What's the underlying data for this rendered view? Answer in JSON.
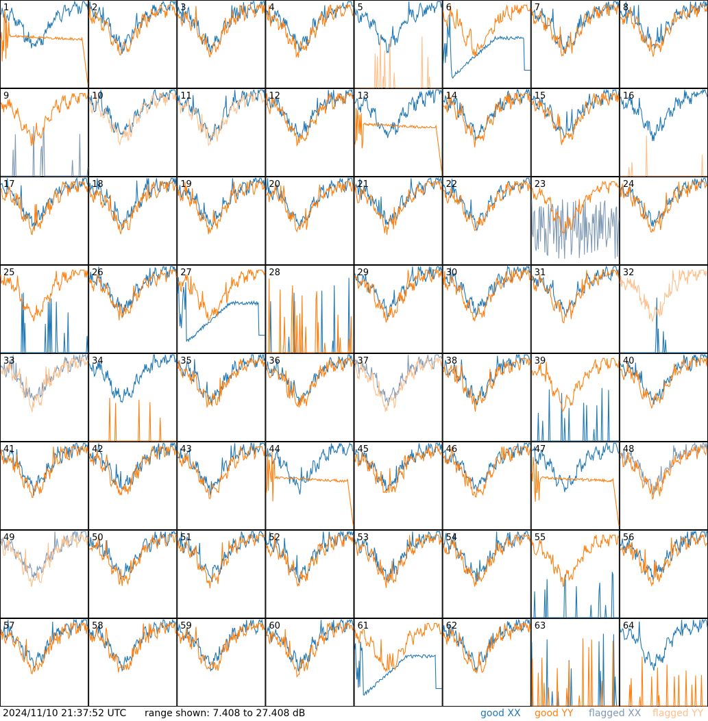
{
  "chart_data": {
    "type": "line",
    "grid": {
      "rows": 8,
      "cols": 8
    },
    "panels": [
      {
        "label": "1",
        "xx": "good",
        "yy": "good",
        "p": "tilt"
      },
      {
        "label": "2",
        "xx": "good",
        "yy": "good",
        "p": "normal"
      },
      {
        "label": "3",
        "xx": "good",
        "yy": "good",
        "p": "normal"
      },
      {
        "label": "4",
        "xx": "good",
        "yy": "good",
        "p": "normal"
      },
      {
        "label": "5",
        "xx": "good",
        "yy": "flagged",
        "p": "spikes_yy"
      },
      {
        "label": "6",
        "xx": "good",
        "yy": "good",
        "p": "dip"
      },
      {
        "label": "7",
        "xx": "good",
        "yy": "good",
        "p": "normal"
      },
      {
        "label": "8",
        "xx": "good",
        "yy": "good",
        "p": "normal"
      },
      {
        "label": "9",
        "xx": "flagged",
        "yy": "good",
        "p": "spikes_xx"
      },
      {
        "label": "10",
        "xx": "good",
        "yy": "flagged",
        "p": "normal"
      },
      {
        "label": "11",
        "xx": "good",
        "yy": "flagged",
        "p": "normal"
      },
      {
        "label": "12",
        "xx": "good",
        "yy": "good",
        "p": "normal"
      },
      {
        "label": "13",
        "xx": "good",
        "yy": "good",
        "p": "tilt"
      },
      {
        "label": "14",
        "xx": "good",
        "yy": "good",
        "p": "normal"
      },
      {
        "label": "15",
        "xx": "good",
        "yy": "good",
        "p": "normal"
      },
      {
        "label": "16",
        "xx": "good",
        "yy": "flagged",
        "p": "spikes_yy"
      },
      {
        "label": "17",
        "xx": "good",
        "yy": "good",
        "p": "normal"
      },
      {
        "label": "18",
        "xx": "good",
        "yy": "good",
        "p": "normal"
      },
      {
        "label": "19",
        "xx": "good",
        "yy": "good",
        "p": "normal"
      },
      {
        "label": "20",
        "xx": "good",
        "yy": "good",
        "p": "normal"
      },
      {
        "label": "21",
        "xx": "good",
        "yy": "good",
        "p": "normal"
      },
      {
        "label": "22",
        "xx": "good",
        "yy": "good",
        "p": "normal"
      },
      {
        "label": "23",
        "xx": "flagged",
        "yy": "good",
        "p": "noisy_xx"
      },
      {
        "label": "24",
        "xx": "good",
        "yy": "good",
        "p": "normal"
      },
      {
        "label": "25",
        "xx": "good",
        "yy": "good",
        "p": "spikes_xx"
      },
      {
        "label": "26",
        "xx": "good",
        "yy": "good",
        "p": "normal"
      },
      {
        "label": "27",
        "xx": "good",
        "yy": "good",
        "p": "dip"
      },
      {
        "label": "28",
        "xx": "good",
        "yy": "good",
        "p": "both_low"
      },
      {
        "label": "29",
        "xx": "good",
        "yy": "good",
        "p": "normal"
      },
      {
        "label": "30",
        "xx": "good",
        "yy": "good",
        "p": "normal"
      },
      {
        "label": "31",
        "xx": "good",
        "yy": "good",
        "p": "normal"
      },
      {
        "label": "32",
        "xx": "good",
        "yy": "flagged",
        "p": "spikes_xx"
      },
      {
        "label": "33",
        "xx": "flagged",
        "yy": "flagged",
        "p": "normal"
      },
      {
        "label": "34",
        "xx": "good",
        "yy": "good",
        "p": "spikes_yy"
      },
      {
        "label": "35",
        "xx": "good",
        "yy": "good",
        "p": "normal"
      },
      {
        "label": "36",
        "xx": "good",
        "yy": "good",
        "p": "normal"
      },
      {
        "label": "37",
        "xx": "flagged",
        "yy": "flagged",
        "p": "normal"
      },
      {
        "label": "38",
        "xx": "good",
        "yy": "good",
        "p": "normal"
      },
      {
        "label": "39",
        "xx": "good",
        "yy": "good",
        "p": "spikes_xx"
      },
      {
        "label": "40",
        "xx": "good",
        "yy": "good",
        "p": "normal"
      },
      {
        "label": "41",
        "xx": "good",
        "yy": "good",
        "p": "normal"
      },
      {
        "label": "42",
        "xx": "good",
        "yy": "good",
        "p": "normal"
      },
      {
        "label": "43",
        "xx": "good",
        "yy": "good",
        "p": "normal"
      },
      {
        "label": "44",
        "xx": "good",
        "yy": "good",
        "p": "tilt"
      },
      {
        "label": "45",
        "xx": "good",
        "yy": "good",
        "p": "normal"
      },
      {
        "label": "46",
        "xx": "good",
        "yy": "good",
        "p": "normal"
      },
      {
        "label": "47",
        "xx": "good",
        "yy": "good",
        "p": "tilt"
      },
      {
        "label": "48",
        "xx": "flagged",
        "yy": "good",
        "p": "normal"
      },
      {
        "label": "49",
        "xx": "flagged",
        "yy": "flagged",
        "p": "normal"
      },
      {
        "label": "50",
        "xx": "good",
        "yy": "good",
        "p": "normal"
      },
      {
        "label": "51",
        "xx": "good",
        "yy": "good",
        "p": "normal"
      },
      {
        "label": "52",
        "xx": "good",
        "yy": "good",
        "p": "normal"
      },
      {
        "label": "53",
        "xx": "good",
        "yy": "good",
        "p": "normal"
      },
      {
        "label": "54",
        "xx": "good",
        "yy": "good",
        "p": "normal"
      },
      {
        "label": "55",
        "xx": "good",
        "yy": "good",
        "p": "spikes_xx"
      },
      {
        "label": "56",
        "xx": "good",
        "yy": "good",
        "p": "normal"
      },
      {
        "label": "57",
        "xx": "good",
        "yy": "good",
        "p": "normal"
      },
      {
        "label": "58",
        "xx": "good",
        "yy": "good",
        "p": "normal"
      },
      {
        "label": "59",
        "xx": "good",
        "yy": "good",
        "p": "normal"
      },
      {
        "label": "60",
        "xx": "good",
        "yy": "good",
        "p": "normal"
      },
      {
        "label": "61",
        "xx": "good",
        "yy": "good",
        "p": "dip"
      },
      {
        "label": "62",
        "xx": "good",
        "yy": "good",
        "p": "normal"
      },
      {
        "label": "63",
        "xx": "good",
        "yy": "good",
        "p": "both_low"
      },
      {
        "label": "64",
        "xx": "good",
        "yy": "good",
        "p": "spikes_yy"
      }
    ],
    "range_min_db": 7.408,
    "range_max_db": 27.408
  },
  "colors": {
    "good_xx": "#1f77b4",
    "good_yy": "#ff7f0e",
    "flagged_xx": "#7f99b5",
    "flagged_yy": "#ffbf8a"
  },
  "footer": {
    "timestamp": "2024/11/10 21:37:52 UTC",
    "range_text": "range shown: 7.408 to 27.408 dB",
    "legend": {
      "good_xx": "good XX",
      "good_yy": "good YY",
      "flagged_xx": "flagged XX",
      "flagged_yy": "flagged YY"
    }
  }
}
